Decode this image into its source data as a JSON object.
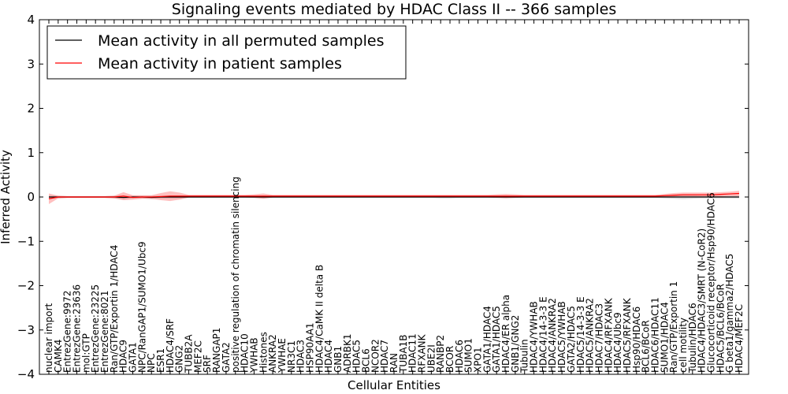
{
  "chart_data": {
    "type": "line",
    "title": "Signaling events mediated by HDAC Class II -- 366 samples",
    "xlabel": "Cellular Entities",
    "ylabel": "Inferred Activity",
    "ylim": [
      -4,
      4
    ],
    "yticks": [
      "4",
      "3",
      "2",
      "1",
      "0",
      "−1",
      "−2",
      "−3",
      "−4"
    ],
    "grid": false,
    "legend_position": "top-left",
    "legend": [
      {
        "label": "Mean activity in all permuted samples",
        "color": "#000000"
      },
      {
        "label": "Mean activity in patient samples",
        "color": "#ff0000"
      }
    ],
    "categories": [
      "nuclear import",
      "CAMK4",
      "EntrezGene:9972",
      "EntrezGene:23636",
      "mol:GTP",
      "EntrezGene:23225",
      "EntrezGene:8021",
      "Ran/GTP/Exportin 1/HDAC4",
      "HDAC9",
      "GATA1",
      "NPC/RanGAP1/SUMO1/Ubc9",
      "NPC",
      "ESR1",
      "HDAC4/SRF",
      "GNG2",
      "TUBB2A",
      "MEF2C",
      "SRF",
      "RANGAP1",
      "GATA2",
      "positive regulation of chromatin silencing",
      "HDAC10",
      "YWHAB",
      "Histones",
      "ANKRA2",
      "YWHAE",
      "NR3C1",
      "HDAC3",
      "HSP90AA1",
      "HDAC4/CaMK II delta B",
      "HDAC4",
      "GNB1",
      "ADRBK1",
      "HDAC5",
      "BCL6",
      "NCOR2",
      "HDAC7",
      "RAN",
      "TUBA1B",
      "HDAC11",
      "RFXANK",
      "UBE2I",
      "RANBP2",
      "BCOR",
      "HDAC6",
      "SUMO1",
      "XPO1",
      "GATA1/HDAC4",
      "GATA1/HDAC5",
      "HDAC4/ER alpha",
      "GNB1/GNG2",
      "Tubulin",
      "HDAC4/YWHAB",
      "HDAC4/14-3-3 E",
      "HDAC4/ANKRA2",
      "HDAC5/YWHAB",
      "GATA2/HDAC5",
      "HDAC5/14-3-3 E",
      "HDAC5/ANKRA2",
      "HDAC7/HDAC3",
      "HDAC4/RFXANK",
      "HDAC4/Ubc9",
      "HDAC5/RFXANK",
      "Hsp90/HDAC6",
      "BCL6/BCoR",
      "HDAC6/HDAC11",
      "SUMO1/HDAC4",
      "Ran/GTP/Exportin 1",
      "cell motility",
      "Tubulin/HDAC6",
      "HDAC4/HDAC3/SMRT (N-CoR2)",
      "Glucocorticoid receptor/Hsp90/HDAC6",
      "HDAC5/BCL6/BCoR",
      "G beta1/gamma2/HDAC5",
      "HDAC4/MEF2C"
    ],
    "series": [
      {
        "name": "Mean activity in all permuted samples",
        "color": "#000000",
        "values": [
          0.0,
          0.0,
          0.0,
          0.0,
          0.0,
          0.0,
          0.0,
          0.0,
          -0.01,
          0.0,
          0.0,
          -0.01,
          0.0,
          0.0,
          0.0,
          0.0,
          0.0,
          0.0,
          0.0,
          0.0,
          0.0,
          0.0,
          0.0,
          0.0,
          0.0,
          0.0,
          0.0,
          0.0,
          0.0,
          0.0,
          0.0,
          0.0,
          0.0,
          0.0,
          0.0,
          0.0,
          0.0,
          0.0,
          0.0,
          0.0,
          0.0,
          0.0,
          0.0,
          0.0,
          0.0,
          0.0,
          0.0,
          0.0,
          0.0,
          0.0,
          0.0,
          0.0,
          0.0,
          0.0,
          0.0,
          0.0,
          0.0,
          0.0,
          0.0,
          0.0,
          0.0,
          0.0,
          0.0,
          0.0,
          0.0,
          0.0,
          0.0,
          0.0,
          0.0,
          0.0,
          0.0,
          0.0,
          0.0,
          0.0,
          0.0
        ],
        "band": [
          0.03,
          0.03,
          0.02,
          0.02,
          0.02,
          0.02,
          0.02,
          0.03,
          0.04,
          0.03,
          0.03,
          0.04,
          0.03,
          0.03,
          0.03,
          0.02,
          0.02,
          0.02,
          0.02,
          0.02,
          0.02,
          0.02,
          0.02,
          0.03,
          0.02,
          0.02,
          0.02,
          0.02,
          0.02,
          0.02,
          0.02,
          0.02,
          0.02,
          0.02,
          0.02,
          0.02,
          0.02,
          0.02,
          0.02,
          0.02,
          0.02,
          0.02,
          0.03,
          0.03,
          0.02,
          0.02,
          0.02,
          0.02,
          0.02,
          0.02,
          0.02,
          0.02,
          0.02,
          0.02,
          0.02,
          0.02,
          0.02,
          0.02,
          0.02,
          0.02,
          0.02,
          0.02,
          0.02,
          0.02,
          0.02,
          0.02,
          0.03,
          0.04,
          0.05,
          0.04,
          0.03,
          0.03,
          0.03,
          0.03,
          0.03
        ]
      },
      {
        "name": "Mean activity in patient samples",
        "color": "#ff0000",
        "values": [
          -0.04,
          0.0,
          0.0,
          0.0,
          0.0,
          0.0,
          0.0,
          0.0,
          0.02,
          -0.01,
          0.0,
          0.0,
          0.01,
          0.02,
          0.02,
          0.02,
          0.02,
          0.02,
          0.02,
          0.02,
          0.02,
          0.02,
          0.02,
          0.02,
          0.02,
          0.02,
          0.02,
          0.02,
          0.02,
          0.02,
          0.02,
          0.02,
          0.02,
          0.02,
          0.02,
          0.02,
          0.02,
          0.02,
          0.02,
          0.02,
          0.02,
          0.02,
          0.02,
          0.02,
          0.02,
          0.02,
          0.02,
          0.02,
          0.02,
          0.02,
          0.02,
          0.02,
          0.02,
          0.02,
          0.02,
          0.02,
          0.02,
          0.02,
          0.02,
          0.02,
          0.02,
          0.02,
          0.02,
          0.02,
          0.02,
          0.02,
          0.03,
          0.04,
          0.05,
          0.05,
          0.05,
          0.05,
          0.06,
          0.07,
          0.08
        ],
        "band": [
          0.12,
          0.03,
          0.02,
          0.02,
          0.02,
          0.02,
          0.02,
          0.03,
          0.09,
          0.05,
          0.04,
          0.04,
          0.08,
          0.11,
          0.08,
          0.03,
          0.03,
          0.03,
          0.03,
          0.03,
          0.03,
          0.03,
          0.04,
          0.06,
          0.03,
          0.03,
          0.03,
          0.03,
          0.03,
          0.03,
          0.03,
          0.03,
          0.03,
          0.03,
          0.03,
          0.03,
          0.03,
          0.03,
          0.03,
          0.03,
          0.03,
          0.03,
          0.03,
          0.03,
          0.03,
          0.03,
          0.03,
          0.03,
          0.04,
          0.05,
          0.04,
          0.03,
          0.03,
          0.03,
          0.03,
          0.03,
          0.03,
          0.03,
          0.03,
          0.03,
          0.03,
          0.03,
          0.03,
          0.03,
          0.03,
          0.03,
          0.04,
          0.05,
          0.05,
          0.05,
          0.05,
          0.05,
          0.05,
          0.05,
          0.06
        ]
      }
    ]
  }
}
